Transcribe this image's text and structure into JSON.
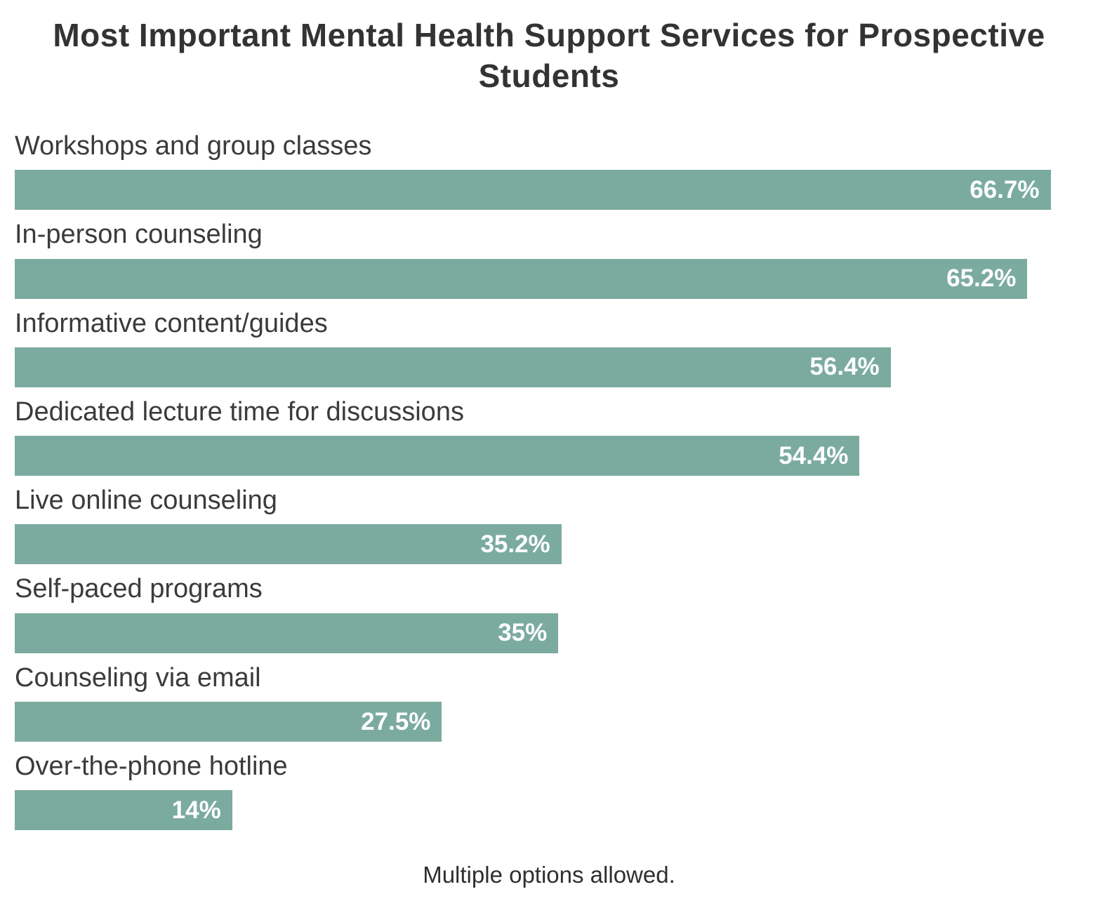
{
  "chart_data": {
    "type": "bar",
    "orientation": "horizontal",
    "title": "Most Important Mental Health Support Services for Prospective Students",
    "categories": [
      "Workshops and group classes",
      "In-person counseling",
      "Informative content/guides",
      "Dedicated lecture time for discussions",
      "Live online counseling",
      "Self-paced programs",
      "Counseling via email",
      "Over-the-phone hotline"
    ],
    "values": [
      66.7,
      65.2,
      56.4,
      54.4,
      35.2,
      35,
      27.5,
      14
    ],
    "value_labels": [
      "66.7%",
      "65.2%",
      "56.4%",
      "54.4%",
      "35.2%",
      "35%",
      "27.5%",
      "14%"
    ],
    "xlabel": "",
    "ylabel": "",
    "xlim": [
      0,
      68.8
    ],
    "grid": false,
    "legend": false,
    "note": "Multiple options allowed.",
    "bar_color": "#7bab9f",
    "value_label_color": "#ffffff",
    "category_label_color": "#3b3b3b"
  }
}
